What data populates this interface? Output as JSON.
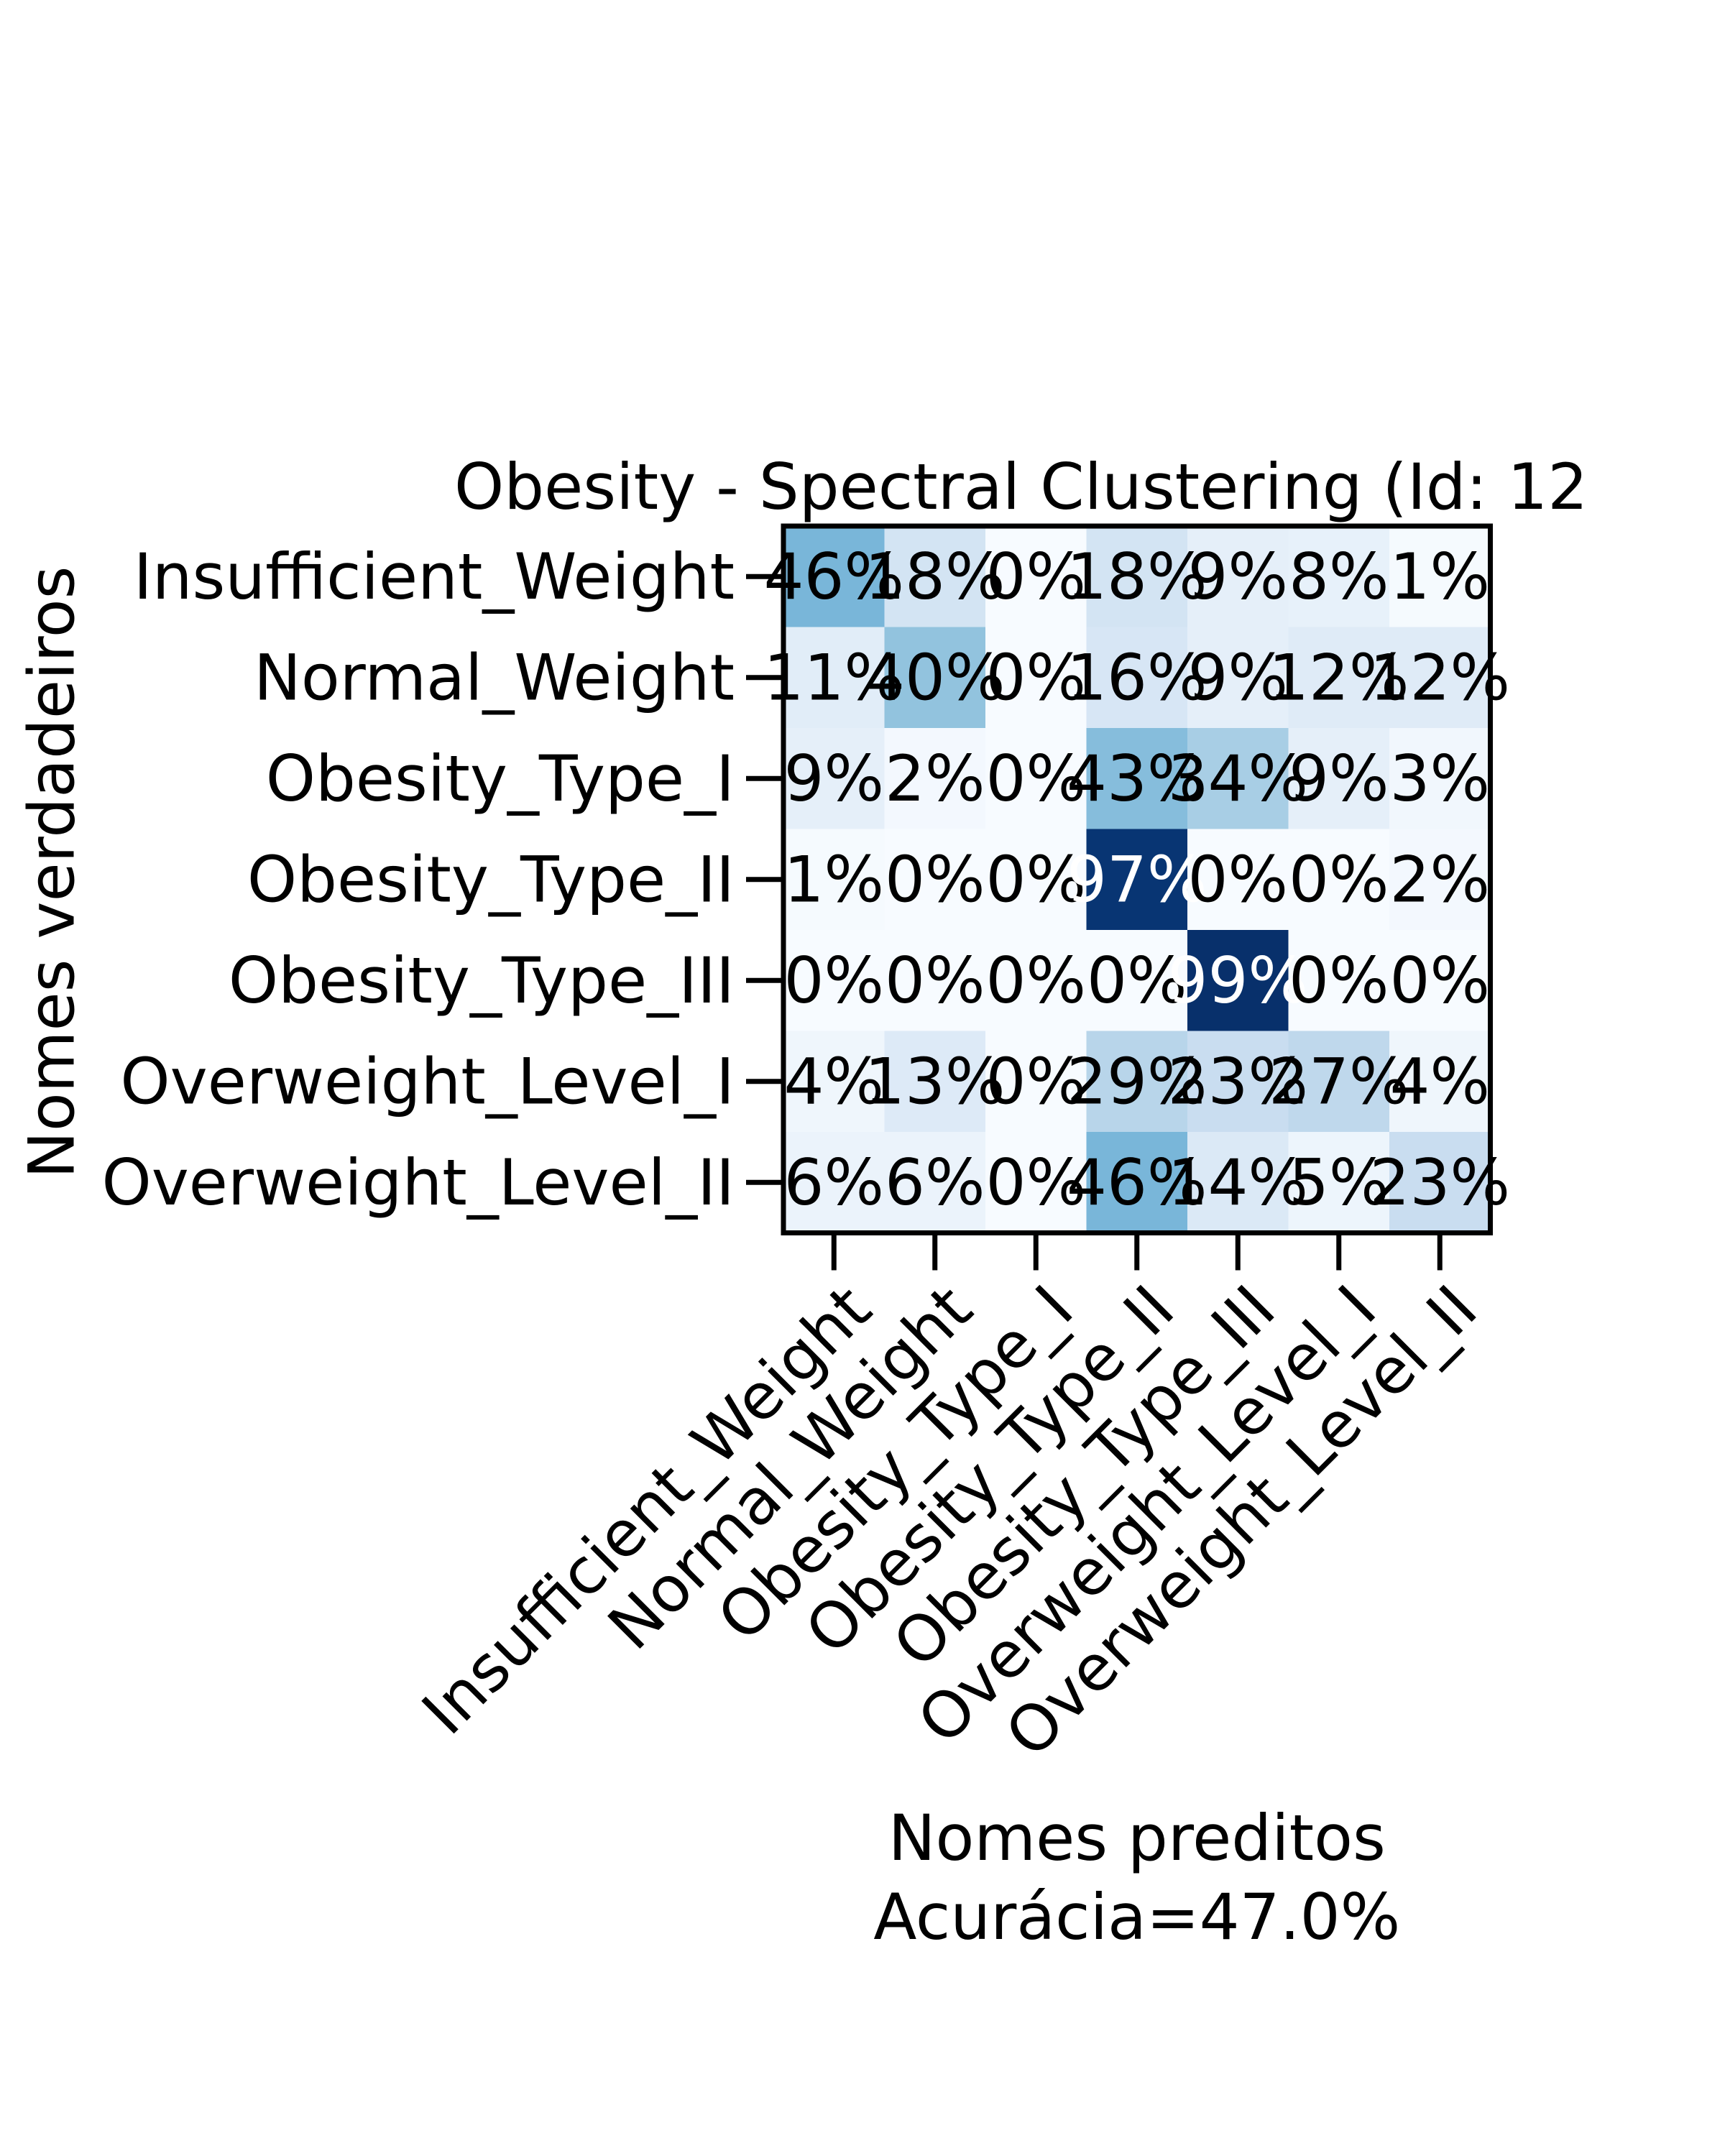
{
  "chart_data": {
    "type": "heatmap",
    "title": "Obesity - Spectral Clustering (Id: 12",
    "xlabel": "Nomes preditos",
    "xlabel_line2": "Acurácia=47.0%",
    "ylabel": "Nomes verdadeiros",
    "x_categories": [
      "Insufficient_Weight",
      "Normal_Weight",
      "Obesity_Type_I",
      "Obesity_Type_II",
      "Obesity_Type_III",
      "Overweight_Level_I",
      "Overweight_Level_II"
    ],
    "y_categories": [
      "Insufficient_Weight",
      "Normal_Weight",
      "Obesity_Type_I",
      "Obesity_Type_II",
      "Obesity_Type_III",
      "Overweight_Level_I",
      "Overweight_Level_II"
    ],
    "values": [
      [
        46,
        18,
        0,
        18,
        9,
        8,
        1
      ],
      [
        11,
        40,
        0,
        16,
        9,
        12,
        12
      ],
      [
        9,
        2,
        0,
        43,
        34,
        9,
        3
      ],
      [
        1,
        0,
        0,
        97,
        0,
        0,
        2
      ],
      [
        0,
        0,
        0,
        0,
        99,
        0,
        0
      ],
      [
        4,
        13,
        0,
        29,
        23,
        27,
        4
      ],
      [
        6,
        6,
        0,
        46,
        14,
        5,
        23
      ]
    ],
    "value_suffix": "%",
    "colormap": "Blues",
    "colorscale_range": [
      0,
      99
    ],
    "grid": false
  }
}
